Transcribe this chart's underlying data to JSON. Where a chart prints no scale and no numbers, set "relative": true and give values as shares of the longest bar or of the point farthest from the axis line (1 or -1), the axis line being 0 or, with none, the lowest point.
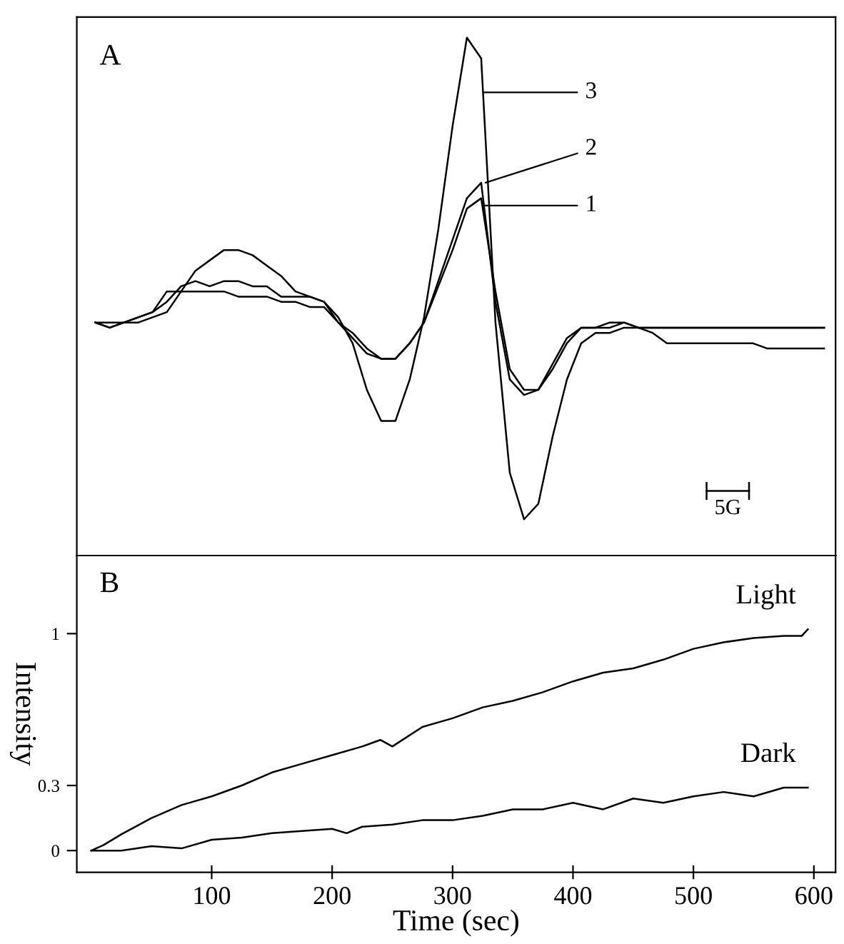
{
  "chart_data": [
    {
      "type": "line",
      "title": "A",
      "relative": true,
      "tick_labels": false,
      "grid": false,
      "legend": "top right",
      "categories": [
        null,
        null,
        null,
        null,
        null,
        null,
        null,
        null,
        null,
        null,
        null,
        null,
        null,
        null,
        null,
        null,
        null,
        null,
        null,
        null,
        null,
        null,
        null,
        null,
        null,
        null,
        null,
        null,
        null,
        null,
        null,
        null,
        null,
        null,
        null,
        null,
        null,
        null,
        null,
        null,
        null,
        null,
        null,
        null,
        null,
        null,
        null,
        null,
        null,
        null,
        null,
        null
      ],
      "annotations": [
        "5G"
      ],
      "series": [
        {
          "name": "1",
          "color": "#000000",
          "values": [
            0.45,
            0.44,
            0.45,
            0.46,
            0.47,
            0.51,
            0.51,
            0.51,
            0.51,
            0.51,
            0.5,
            0.5,
            0.5,
            0.49,
            0.49,
            0.48,
            0.48,
            0.45,
            0.42,
            0.39,
            0.38,
            0.38,
            0.41,
            0.45,
            0.52,
            0.59,
            0.67,
            0.69,
            0.51,
            0.36,
            0.32,
            0.32,
            0.37,
            0.42,
            0.44,
            0.44,
            0.45,
            0.45,
            0.44,
            0.44,
            0.44,
            0.44,
            0.44,
            0.44,
            0.44,
            0.44,
            0.44,
            0.44,
            0.44,
            0.44,
            0.44,
            0.44
          ]
        },
        {
          "name": "2",
          "color": "#000000",
          "values": [
            0.45,
            0.44,
            0.45,
            0.46,
            0.47,
            0.49,
            0.52,
            0.53,
            0.52,
            0.53,
            0.53,
            0.52,
            0.52,
            0.5,
            0.5,
            0.5,
            0.49,
            0.45,
            0.43,
            0.4,
            0.38,
            0.38,
            0.41,
            0.45,
            0.53,
            0.61,
            0.69,
            0.72,
            0.49,
            0.34,
            0.31,
            0.32,
            0.36,
            0.41,
            0.44,
            0.44,
            0.44,
            0.45,
            0.44,
            0.44,
            0.44,
            0.44,
            0.44,
            0.44,
            0.44,
            0.44,
            0.44,
            0.44,
            0.44,
            0.44,
            0.44,
            0.44
          ]
        },
        {
          "name": "3",
          "color": "#000000",
          "values": [
            0.45,
            0.45,
            0.45,
            0.45,
            0.46,
            0.47,
            0.51,
            0.55,
            0.57,
            0.59,
            0.59,
            0.58,
            0.56,
            0.54,
            0.51,
            0.5,
            0.49,
            0.46,
            0.41,
            0.32,
            0.26,
            0.26,
            0.34,
            0.46,
            0.63,
            0.83,
            1,
            0.96,
            0.45,
            0.16,
            0.07,
            0.1,
            0.23,
            0.34,
            0.41,
            0.43,
            0.43,
            0.44,
            0.44,
            0.43,
            0.41,
            0.41,
            0.41,
            0.41,
            0.41,
            0.41,
            0.41,
            0.4,
            0.4,
            0.4,
            0.4,
            0.4
          ]
        }
      ]
    },
    {
      "type": "line",
      "title": "B",
      "xlabel": "Time (sec)",
      "ylabel": "Intensity",
      "grid": false,
      "legend": false,
      "xlim": [
        -12,
        618
      ],
      "ylim": [
        -0.1,
        1.36
      ],
      "xticks": [
        100,
        200,
        300,
        400,
        500,
        600
      ],
      "yticks": [
        0,
        0.3,
        1
      ],
      "series": [
        {
          "name": "Light",
          "color": "#000000",
          "x": [
            0,
            10,
            25,
            50,
            75,
            100,
            125,
            150,
            175,
            200,
            225,
            240,
            250,
            275,
            300,
            325,
            350,
            375,
            400,
            425,
            450,
            475,
            500,
            525,
            550,
            575,
            590,
            595
          ],
          "values": [
            0,
            0.025,
            0.075,
            0.15,
            0.21,
            0.25,
            0.3,
            0.36,
            0.4,
            0.44,
            0.48,
            0.51,
            0.48,
            0.57,
            0.61,
            0.66,
            0.69,
            0.73,
            0.78,
            0.82,
            0.84,
            0.88,
            0.93,
            0.96,
            0.98,
            0.99,
            0.99,
            1.02
          ]
        },
        {
          "name": "Dark",
          "color": "#000000",
          "x": [
            0,
            25,
            50,
            75,
            100,
            125,
            150,
            175,
            200,
            212,
            225,
            250,
            275,
            300,
            325,
            350,
            375,
            400,
            425,
            450,
            475,
            500,
            525,
            550,
            575,
            595
          ],
          "values": [
            0,
            0,
            0.02,
            0.01,
            0.05,
            0.06,
            0.08,
            0.09,
            0.1,
            0.08,
            0.11,
            0.12,
            0.14,
            0.14,
            0.16,
            0.19,
            0.19,
            0.22,
            0.19,
            0.24,
            0.22,
            0.25,
            0.27,
            0.25,
            0.29,
            0.29
          ]
        }
      ]
    }
  ]
}
